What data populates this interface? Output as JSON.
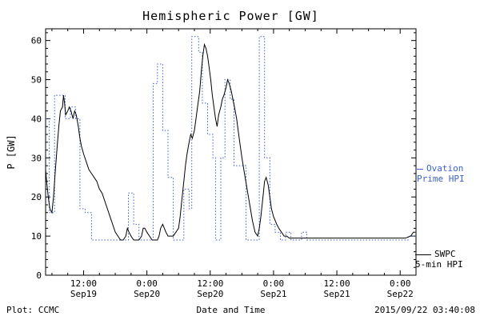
{
  "title": "Hemispheric Power [GW]",
  "ylabel": "P [GW]",
  "footer": {
    "left": "Plot: CCMC",
    "center": "Date and Time",
    "right": "2015/09/22 03:40:08"
  },
  "legend": {
    "ovation": {
      "line1": "Ovation",
      "line2": "Prime HPI",
      "color": "#3b5fce"
    },
    "swpc": {
      "line1": "SWPC",
      "line2": "5-min HPI",
      "color": "#000000"
    }
  },
  "chart_data": {
    "type": "line",
    "title": "Hemispheric Power [GW]",
    "xlabel": "Date and Time",
    "ylabel": "P [GW]",
    "ylim": [
      0,
      63
    ],
    "xlim_hours": [
      4.8,
      75
    ],
    "grid": false,
    "legend_position": "right-outside",
    "y_ticks": [
      0,
      10,
      20,
      30,
      40,
      50,
      60
    ],
    "x_ticks": [
      {
        "hours": 12,
        "time": "12:00",
        "date": "Sep19"
      },
      {
        "hours": 24,
        "time": "0:00",
        "date": "Sep20"
      },
      {
        "hours": 36,
        "time": "12:00",
        "date": "Sep20"
      },
      {
        "hours": 48,
        "time": "0:00",
        "date": "Sep21"
      },
      {
        "hours": 60,
        "time": "12:00",
        "date": "Sep21"
      },
      {
        "hours": 72,
        "time": "0:00",
        "date": "Sep22"
      }
    ],
    "series": [
      {
        "name": "Ovation Prime HPI",
        "color": "#3b5fce",
        "style": "dotted",
        "interpolation": "step",
        "points": [
          [
            4.8,
            40
          ],
          [
            5.5,
            16
          ],
          [
            6.5,
            46
          ],
          [
            7.5,
            46
          ],
          [
            8.5,
            40
          ],
          [
            9.5,
            43
          ],
          [
            10.5,
            40
          ],
          [
            11.3,
            17
          ],
          [
            12.3,
            16
          ],
          [
            13.5,
            9
          ],
          [
            14.5,
            9
          ],
          [
            15.5,
            9
          ],
          [
            16.5,
            9
          ],
          [
            17.5,
            9
          ],
          [
            18.5,
            9
          ],
          [
            19.5,
            9
          ],
          [
            20.5,
            21
          ],
          [
            21.5,
            13
          ],
          [
            22.5,
            9
          ],
          [
            23.5,
            9
          ],
          [
            24.5,
            9
          ],
          [
            25.2,
            49
          ],
          [
            26,
            54
          ],
          [
            27,
            37
          ],
          [
            28,
            25
          ],
          [
            29,
            9
          ],
          [
            30,
            9
          ],
          [
            31,
            22
          ],
          [
            32,
            17
          ],
          [
            32.5,
            61
          ],
          [
            33.8,
            57
          ],
          [
            34.5,
            44
          ],
          [
            35.5,
            36
          ],
          [
            36.5,
            30
          ],
          [
            37,
            9
          ],
          [
            38,
            30
          ],
          [
            38.8,
            50
          ],
          [
            39.8,
            45
          ],
          [
            40.5,
            28
          ],
          [
            42,
            28
          ],
          [
            42.8,
            9
          ],
          [
            43.8,
            9
          ],
          [
            44.8,
            9
          ],
          [
            45.3,
            61
          ],
          [
            46.3,
            30
          ],
          [
            47.3,
            13
          ],
          [
            48.3,
            11
          ],
          [
            49.3,
            9
          ],
          [
            50.3,
            11
          ],
          [
            51.3,
            9
          ],
          [
            52.3,
            9
          ],
          [
            53.3,
            11
          ],
          [
            54.3,
            9
          ],
          [
            56,
            9
          ],
          [
            58,
            9
          ],
          [
            60,
            9
          ],
          [
            62,
            9
          ],
          [
            64,
            9
          ],
          [
            66,
            9
          ],
          [
            68,
            9
          ],
          [
            70,
            9
          ],
          [
            72,
            9
          ],
          [
            73.5,
            10
          ],
          [
            74.5,
            10
          ]
        ]
      },
      {
        "name": "SWPC 5-min HPI",
        "color": "#000000",
        "style": "solid",
        "interpolation": "linear",
        "points": [
          [
            4.8,
            27
          ],
          [
            5,
            24
          ],
          [
            5.3,
            20
          ],
          [
            5.6,
            17
          ],
          [
            6,
            16
          ],
          [
            6.3,
            20
          ],
          [
            6.6,
            26
          ],
          [
            7,
            33
          ],
          [
            7.3,
            38
          ],
          [
            7.6,
            42
          ],
          [
            8,
            43
          ],
          [
            8.2,
            46
          ],
          [
            8.4,
            44
          ],
          [
            8.6,
            41
          ],
          [
            9,
            42
          ],
          [
            9.3,
            43
          ],
          [
            9.6,
            42
          ],
          [
            10,
            40
          ],
          [
            10.3,
            42
          ],
          [
            10.6,
            41
          ],
          [
            11,
            38
          ],
          [
            11.3,
            35
          ],
          [
            11.6,
            33
          ],
          [
            12,
            31
          ],
          [
            12.5,
            29
          ],
          [
            13,
            27
          ],
          [
            13.5,
            26
          ],
          [
            14,
            25
          ],
          [
            14.5,
            24
          ],
          [
            15,
            22
          ],
          [
            15.5,
            21
          ],
          [
            16,
            19
          ],
          [
            16.5,
            17
          ],
          [
            17,
            15
          ],
          [
            17.5,
            13
          ],
          [
            18,
            11
          ],
          [
            18.5,
            10
          ],
          [
            19,
            9
          ],
          [
            19.5,
            9
          ],
          [
            20,
            10
          ],
          [
            20.3,
            12
          ],
          [
            20.6,
            11
          ],
          [
            21,
            10
          ],
          [
            21.5,
            9
          ],
          [
            22,
            9
          ],
          [
            22.5,
            9
          ],
          [
            23,
            10
          ],
          [
            23.3,
            12
          ],
          [
            23.6,
            12
          ],
          [
            24,
            11
          ],
          [
            24.5,
            10
          ],
          [
            25,
            9
          ],
          [
            25.5,
            9
          ],
          [
            26,
            9
          ],
          [
            26.3,
            10
          ],
          [
            26.6,
            12
          ],
          [
            27,
            13
          ],
          [
            27.3,
            12
          ],
          [
            27.6,
            11
          ],
          [
            28,
            10
          ],
          [
            28.5,
            10
          ],
          [
            29,
            10
          ],
          [
            29.5,
            11
          ],
          [
            30,
            12
          ],
          [
            30.3,
            15
          ],
          [
            30.6,
            19
          ],
          [
            31,
            24
          ],
          [
            31.3,
            28
          ],
          [
            31.6,
            31
          ],
          [
            32,
            34
          ],
          [
            32.3,
            36
          ],
          [
            32.6,
            35
          ],
          [
            33,
            37
          ],
          [
            33.3,
            40
          ],
          [
            33.6,
            43
          ],
          [
            34,
            47
          ],
          [
            34.3,
            52
          ],
          [
            34.6,
            56
          ],
          [
            34.9,
            59
          ],
          [
            35.2,
            58
          ],
          [
            35.5,
            56
          ],
          [
            35.8,
            53
          ],
          [
            36.1,
            50
          ],
          [
            36.4,
            46
          ],
          [
            36.7,
            43
          ],
          [
            37,
            40
          ],
          [
            37.3,
            38
          ],
          [
            37.6,
            41
          ],
          [
            38,
            43
          ],
          [
            38.3,
            45
          ],
          [
            38.6,
            46
          ],
          [
            39,
            48
          ],
          [
            39.3,
            50
          ],
          [
            39.6,
            49
          ],
          [
            40,
            47
          ],
          [
            40.3,
            45
          ],
          [
            40.6,
            43
          ],
          [
            41,
            40
          ],
          [
            41.3,
            37
          ],
          [
            41.6,
            34
          ],
          [
            42,
            30
          ],
          [
            42.5,
            26
          ],
          [
            43,
            22
          ],
          [
            43.5,
            18
          ],
          [
            44,
            14
          ],
          [
            44.5,
            11
          ],
          [
            45,
            10
          ],
          [
            45.3,
            12
          ],
          [
            45.6,
            15
          ],
          [
            46,
            20
          ],
          [
            46.3,
            24
          ],
          [
            46.6,
            25
          ],
          [
            47,
            23
          ],
          [
            47.3,
            20
          ],
          [
            47.6,
            17
          ],
          [
            48,
            15
          ],
          [
            48.3,
            14
          ],
          [
            48.6,
            13
          ],
          [
            49,
            12
          ],
          [
            49.5,
            11
          ],
          [
            50,
            10
          ],
          [
            50.5,
            10
          ],
          [
            51,
            9.5
          ],
          [
            52,
            9.5
          ],
          [
            53,
            9.5
          ],
          [
            54,
            9.5
          ],
          [
            55,
            9.5
          ],
          [
            56,
            9.5
          ],
          [
            57,
            9.5
          ],
          [
            58,
            9.5
          ],
          [
            59,
            9.5
          ],
          [
            60,
            9.5
          ],
          [
            61,
            9.5
          ],
          [
            62,
            9.5
          ],
          [
            63,
            9.5
          ],
          [
            64,
            9.5
          ],
          [
            65,
            9.5
          ],
          [
            66,
            9.5
          ],
          [
            67,
            9.5
          ],
          [
            68,
            9.5
          ],
          [
            69,
            9.5
          ],
          [
            70,
            9.5
          ],
          [
            71,
            9.5
          ],
          [
            72,
            9.5
          ],
          [
            73,
            9.5
          ],
          [
            74,
            10
          ],
          [
            74.5,
            11
          ],
          [
            74.9,
            11
          ]
        ]
      }
    ]
  }
}
